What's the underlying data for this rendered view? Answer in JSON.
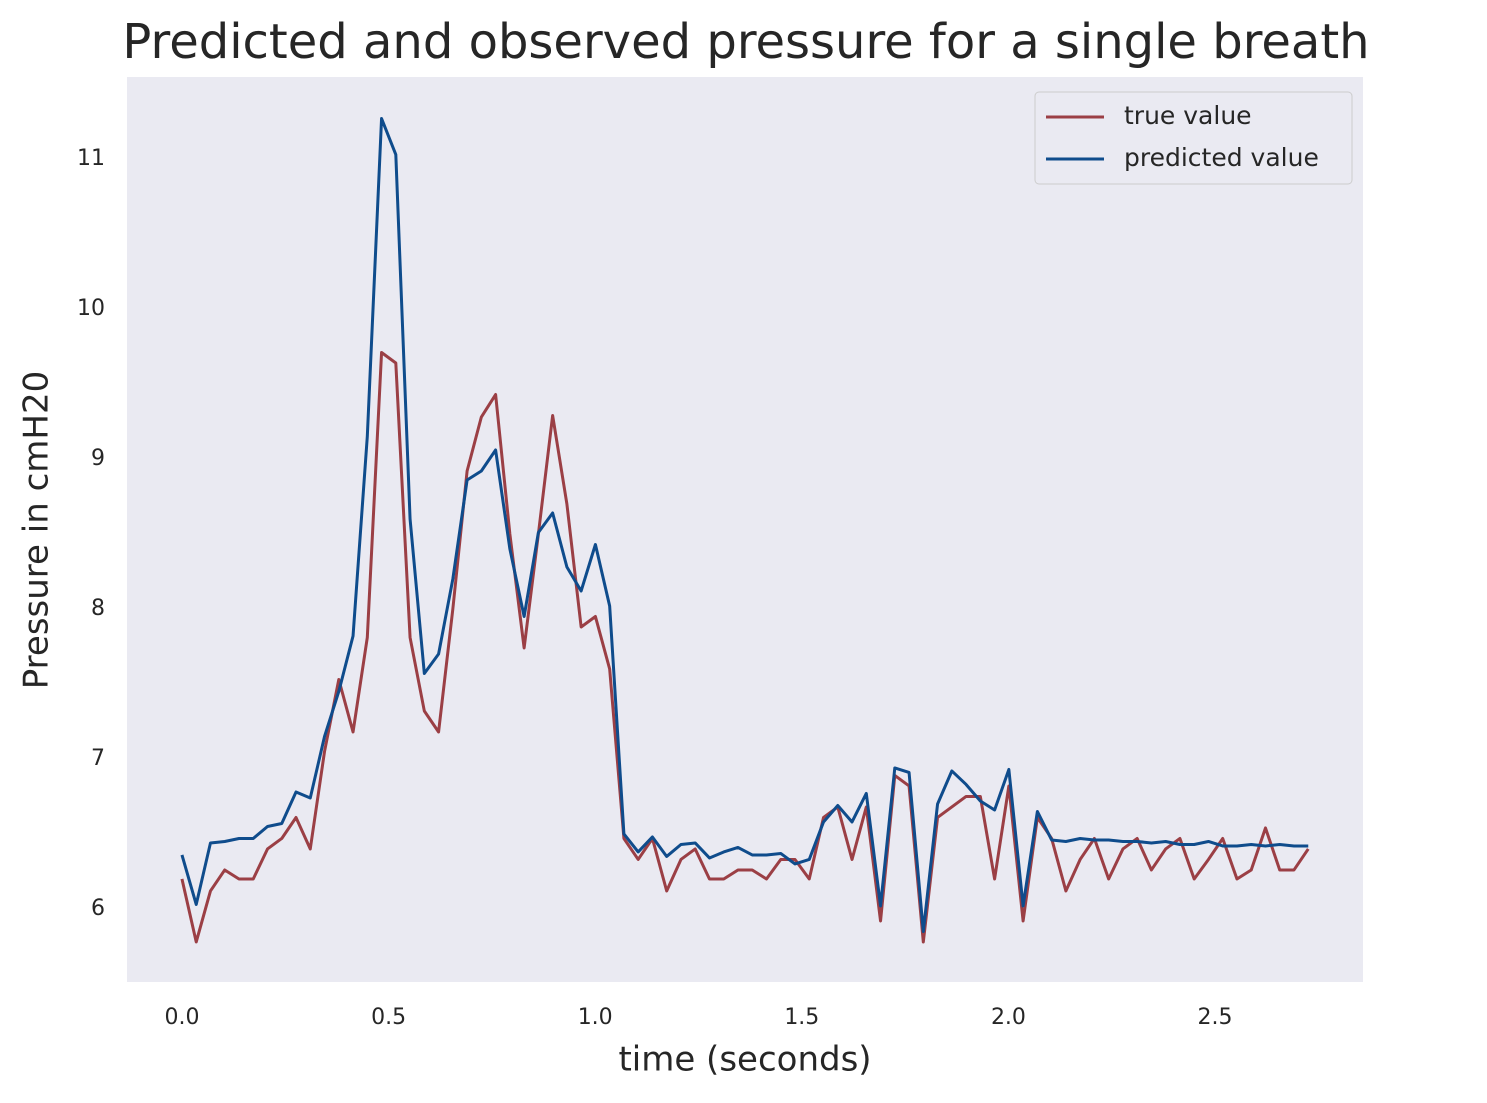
{
  "chart_data": {
    "type": "line",
    "title": "Predicted and observed pressure for a single breath",
    "xlabel": "time (seconds)",
    "ylabel": "Pressure in cmH20",
    "x": [
      0,
      0.0345,
      0.069,
      0.1035,
      0.138,
      0.1725,
      0.207,
      0.2415,
      0.276,
      0.3105,
      0.345,
      0.3795,
      0.414,
      0.4485,
      0.483,
      0.5175,
      0.552,
      0.5865,
      0.621,
      0.6555,
      0.69,
      0.7245,
      0.759,
      0.7935,
      0.828,
      0.8625,
      0.897,
      0.9315,
      0.966,
      1.0005,
      1.035,
      1.0695,
      1.104,
      1.1385,
      1.173,
      1.2075,
      1.242,
      1.2765,
      1.311,
      1.3455,
      1.38,
      1.4145,
      1.449,
      1.4835,
      1.518,
      1.5525,
      1.587,
      1.6215,
      1.656,
      1.6905,
      1.725,
      1.7595,
      1.794,
      1.8285,
      1.863,
      1.8975,
      1.932,
      1.9665,
      2.001,
      2.0355,
      2.07,
      2.1045,
      2.139,
      2.1735,
      2.208,
      2.2425,
      2.277,
      2.3115,
      2.346,
      2.3805,
      2.415,
      2.4495,
      2.484,
      2.5185,
      2.553,
      2.5875,
      2.622,
      2.6565,
      2.691,
      2.7255
    ],
    "series": [
      {
        "name": "true value",
        "color": "#9b3f45",
        "values": [
          6.2,
          5.78,
          6.12,
          6.26,
          6.2,
          6.2,
          6.4,
          6.47,
          6.61,
          6.4,
          7.05,
          7.53,
          7.18,
          7.81,
          9.71,
          9.64,
          7.81,
          7.32,
          7.18,
          8.0,
          8.92,
          9.28,
          9.43,
          8.5,
          7.74,
          8.5,
          9.29,
          8.7,
          7.88,
          7.95,
          7.6,
          6.47,
          6.33,
          6.47,
          6.12,
          6.33,
          6.4,
          6.2,
          6.2,
          6.26,
          6.26,
          6.2,
          6.33,
          6.33,
          6.2,
          6.61,
          6.68,
          6.33,
          6.68,
          5.92,
          6.89,
          6.82,
          5.78,
          6.61,
          6.68,
          6.75,
          6.75,
          6.2,
          6.82,
          5.92,
          6.61,
          6.47,
          6.12,
          6.33,
          6.47,
          6.2,
          6.4,
          6.47,
          6.26,
          6.4,
          6.47,
          6.2,
          6.33,
          6.47,
          6.2,
          6.26,
          6.54,
          6.26,
          6.26,
          6.4
        ]
      },
      {
        "name": "predicted value",
        "color": "#0f4c8c",
        "values": [
          6.36,
          6.03,
          6.44,
          6.45,
          6.47,
          6.47,
          6.55,
          6.57,
          6.78,
          6.74,
          7.15,
          7.45,
          7.82,
          9.15,
          11.27,
          11.03,
          8.6,
          7.57,
          7.7,
          8.2,
          8.86,
          8.92,
          9.06,
          8.4,
          7.95,
          8.51,
          8.64,
          8.28,
          8.12,
          8.43,
          8.02,
          6.5,
          6.38,
          6.48,
          6.35,
          6.43,
          6.44,
          6.34,
          6.38,
          6.41,
          6.36,
          6.36,
          6.37,
          6.3,
          6.33,
          6.58,
          6.69,
          6.58,
          6.77,
          6.02,
          6.94,
          6.91,
          5.85,
          6.7,
          6.92,
          6.83,
          6.72,
          6.66,
          6.93,
          6.02,
          6.65,
          6.46,
          6.45,
          6.47,
          6.46,
          6.46,
          6.45,
          6.45,
          6.44,
          6.45,
          6.43,
          6.43,
          6.45,
          6.42,
          6.42,
          6.43,
          6.42,
          6.43,
          6.42,
          6.42
        ]
      }
    ],
    "xlim": [
      -0.133,
      2.858
    ],
    "ylim": [
      5.513,
      11.547
    ],
    "xticks": [
      {
        "value": 0,
        "label": "0.0"
      },
      0.5,
      {
        "value": 1,
        "label": "1.0"
      },
      1.5,
      {
        "value": 2,
        "label": "2.0"
      },
      2.5
    ],
    "yticks": [
      6,
      7,
      8,
      9,
      10,
      11
    ],
    "grid": false,
    "legend": "upper right"
  }
}
